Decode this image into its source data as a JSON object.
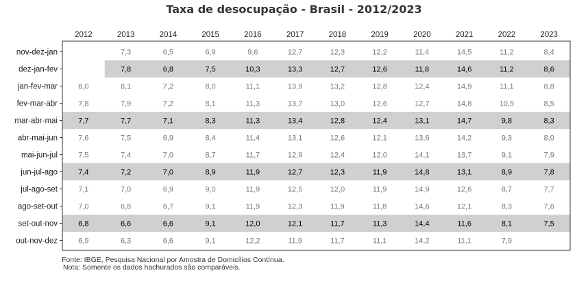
{
  "chart_data": {
    "type": "table",
    "title": "Taxa de desocupação - Brasil - 2012/2023",
    "years": [
      "2012",
      "2013",
      "2014",
      "2015",
      "2016",
      "2017",
      "2018",
      "2019",
      "2020",
      "2021",
      "2022",
      "2023"
    ],
    "rows": [
      {
        "label": "nov-dez-jan",
        "highlighted": false,
        "values": [
          null,
          7.3,
          6.5,
          6.9,
          9.6,
          12.7,
          12.3,
          12.2,
          11.4,
          14.5,
          11.2,
          8.4
        ]
      },
      {
        "label": "dez-jan-fev",
        "highlighted": true,
        "values": [
          null,
          7.8,
          6.8,
          7.5,
          10.3,
          13.3,
          12.7,
          12.6,
          11.8,
          14.6,
          11.2,
          8.6
        ]
      },
      {
        "label": "jan-fev-mar",
        "highlighted": false,
        "values": [
          8.0,
          8.1,
          7.2,
          8.0,
          11.1,
          13.9,
          13.2,
          12.8,
          12.4,
          14.9,
          11.1,
          8.8
        ]
      },
      {
        "label": "fev-mar-abr",
        "highlighted": false,
        "values": [
          7.8,
          7.9,
          7.2,
          8.1,
          11.3,
          13.7,
          13.0,
          12.6,
          12.7,
          14.8,
          10.5,
          8.5
        ]
      },
      {
        "label": "mar-abr-mai",
        "highlighted": true,
        "values": [
          7.7,
          7.7,
          7.1,
          8.3,
          11.3,
          13.4,
          12.8,
          12.4,
          13.1,
          14.7,
          9.8,
          8.3
        ]
      },
      {
        "label": "abr-mai-jun",
        "highlighted": false,
        "values": [
          7.6,
          7.5,
          6.9,
          8.4,
          11.4,
          13.1,
          12.6,
          12.1,
          13.6,
          14.2,
          9.3,
          8.0
        ]
      },
      {
        "label": "mai-jun-jul",
        "highlighted": false,
        "values": [
          7.5,
          7.4,
          7.0,
          8.7,
          11.7,
          12.9,
          12.4,
          12.0,
          14.1,
          13.7,
          9.1,
          7.9
        ]
      },
      {
        "label": "jun-jul-ago",
        "highlighted": true,
        "values": [
          7.4,
          7.2,
          7.0,
          8.9,
          11.9,
          12.7,
          12.3,
          11.9,
          14.8,
          13.1,
          8.9,
          7.8
        ]
      },
      {
        "label": "jul-ago-set",
        "highlighted": false,
        "values": [
          7.1,
          7.0,
          6.9,
          9.0,
          11.9,
          12.5,
          12.0,
          11.9,
          14.9,
          12.6,
          8.7,
          7.7
        ]
      },
      {
        "label": "ago-set-out",
        "highlighted": false,
        "values": [
          7.0,
          6.8,
          6.7,
          9.1,
          11.9,
          12.3,
          11.9,
          11.8,
          14.6,
          12.1,
          8.3,
          7.6
        ]
      },
      {
        "label": "set-out-nov",
        "highlighted": true,
        "values": [
          6.8,
          6.6,
          6.6,
          9.1,
          12.0,
          12.1,
          11.7,
          11.3,
          14.4,
          11.6,
          8.1,
          7.5
        ]
      },
      {
        "label": "out-nov-dez",
        "highlighted": false,
        "values": [
          6.9,
          6.3,
          6.6,
          9.1,
          12.2,
          11.9,
          11.7,
          11.1,
          14.2,
          11.1,
          7.9,
          null
        ]
      }
    ],
    "source": "Fonte: IBGE, Pesquisa Nacional por Amostra de Domicílios Contínua.",
    "note": "Nota: Somente os dados hachurados são comparáveis.",
    "colors": {
      "highlight": "#d0d0d0",
      "text_normal": "#777777",
      "text_highlight": "#000000",
      "border": "#333333"
    }
  }
}
